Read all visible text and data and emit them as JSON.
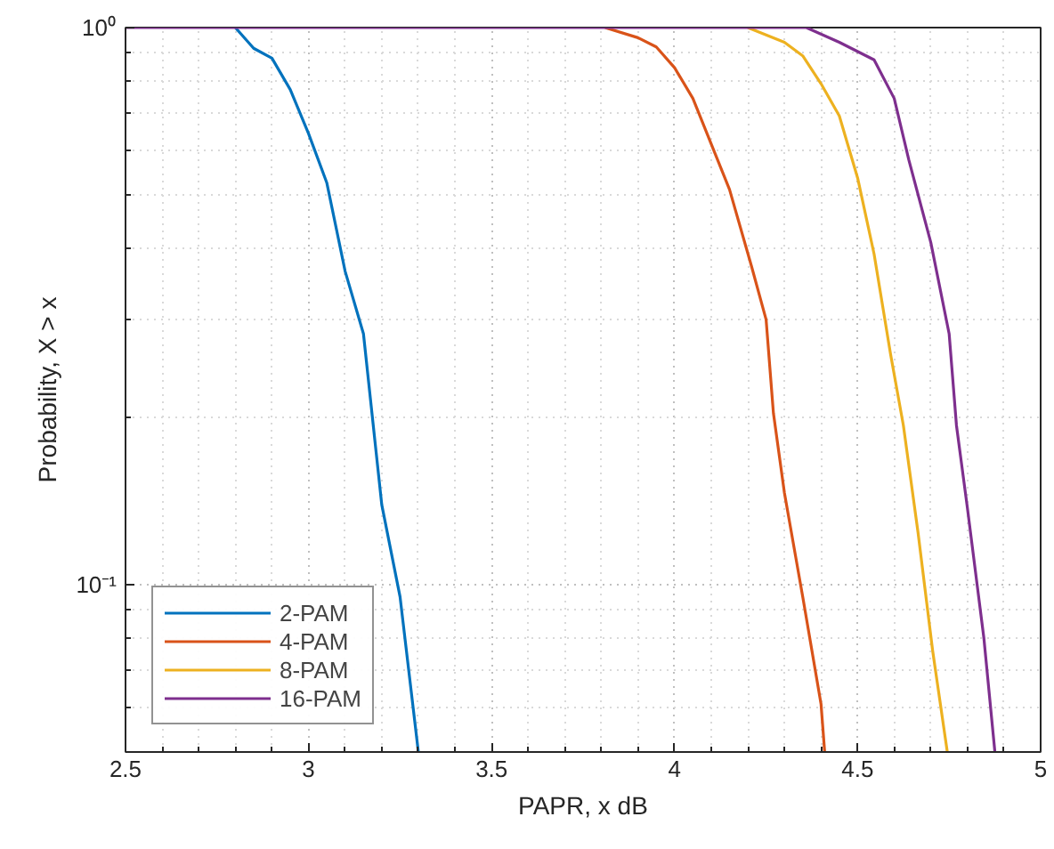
{
  "chart_data": {
    "type": "line",
    "xlabel": "PAPR, x dB",
    "ylabel": "Probability, X > x",
    "xlim": [
      2.5,
      5
    ],
    "ylim": [
      0.05,
      1
    ],
    "xticks": [
      2.5,
      3,
      3.5,
      4,
      4.5,
      5
    ],
    "yticks": [
      {
        "value": 0.1,
        "label": "10⁻¹"
      },
      {
        "value": 1,
        "label": "10⁰"
      }
    ],
    "log": true,
    "grid": true,
    "legend": "bottom left",
    "line_style": "solid",
    "series": [
      {
        "name": "2-PAM",
        "color": "#0072bd",
        "x": [
          2.8,
          2.85,
          2.9,
          2.95,
          3.0,
          3.05,
          3.1,
          3.15,
          3.2,
          3.25,
          3.3
        ],
        "values": [
          1,
          0.918,
          0.881,
          0.774,
          0.645,
          0.526,
          0.365,
          0.282,
          0.139,
          0.095,
          0.05
        ]
      },
      {
        "name": "4-PAM",
        "color": "#d95319",
        "x": [
          3.81,
          3.9,
          3.95,
          4.0,
          4.05,
          4.15,
          4.21,
          4.25,
          4.27,
          4.3,
          4.35,
          4.4,
          4.41
        ],
        "values": [
          1,
          0.959,
          0.923,
          0.847,
          0.746,
          0.512,
          0.373,
          0.299,
          0.203,
          0.146,
          0.095,
          0.061,
          0.05
        ]
      },
      {
        "name": "8-PAM",
        "color": "#edb120",
        "x": [
          4.2,
          4.3,
          4.35,
          4.4,
          4.45,
          4.5,
          4.545,
          4.59,
          4.625,
          4.665,
          4.705,
          4.745
        ],
        "values": [
          1,
          0.941,
          0.89,
          0.793,
          0.694,
          0.537,
          0.392,
          0.259,
          0.193,
          0.124,
          0.076,
          0.05
        ]
      },
      {
        "name": "16-PAM",
        "color": "#7e2f8e",
        "x": [
          2.5,
          4.36,
          4.45,
          4.545,
          4.6,
          4.64,
          4.7,
          4.75,
          4.77,
          4.8,
          4.845,
          4.875
        ],
        "values": [
          1,
          1,
          0.941,
          0.875,
          0.746,
          0.578,
          0.411,
          0.282,
          0.193,
          0.137,
          0.08,
          0.05
        ]
      }
    ]
  }
}
